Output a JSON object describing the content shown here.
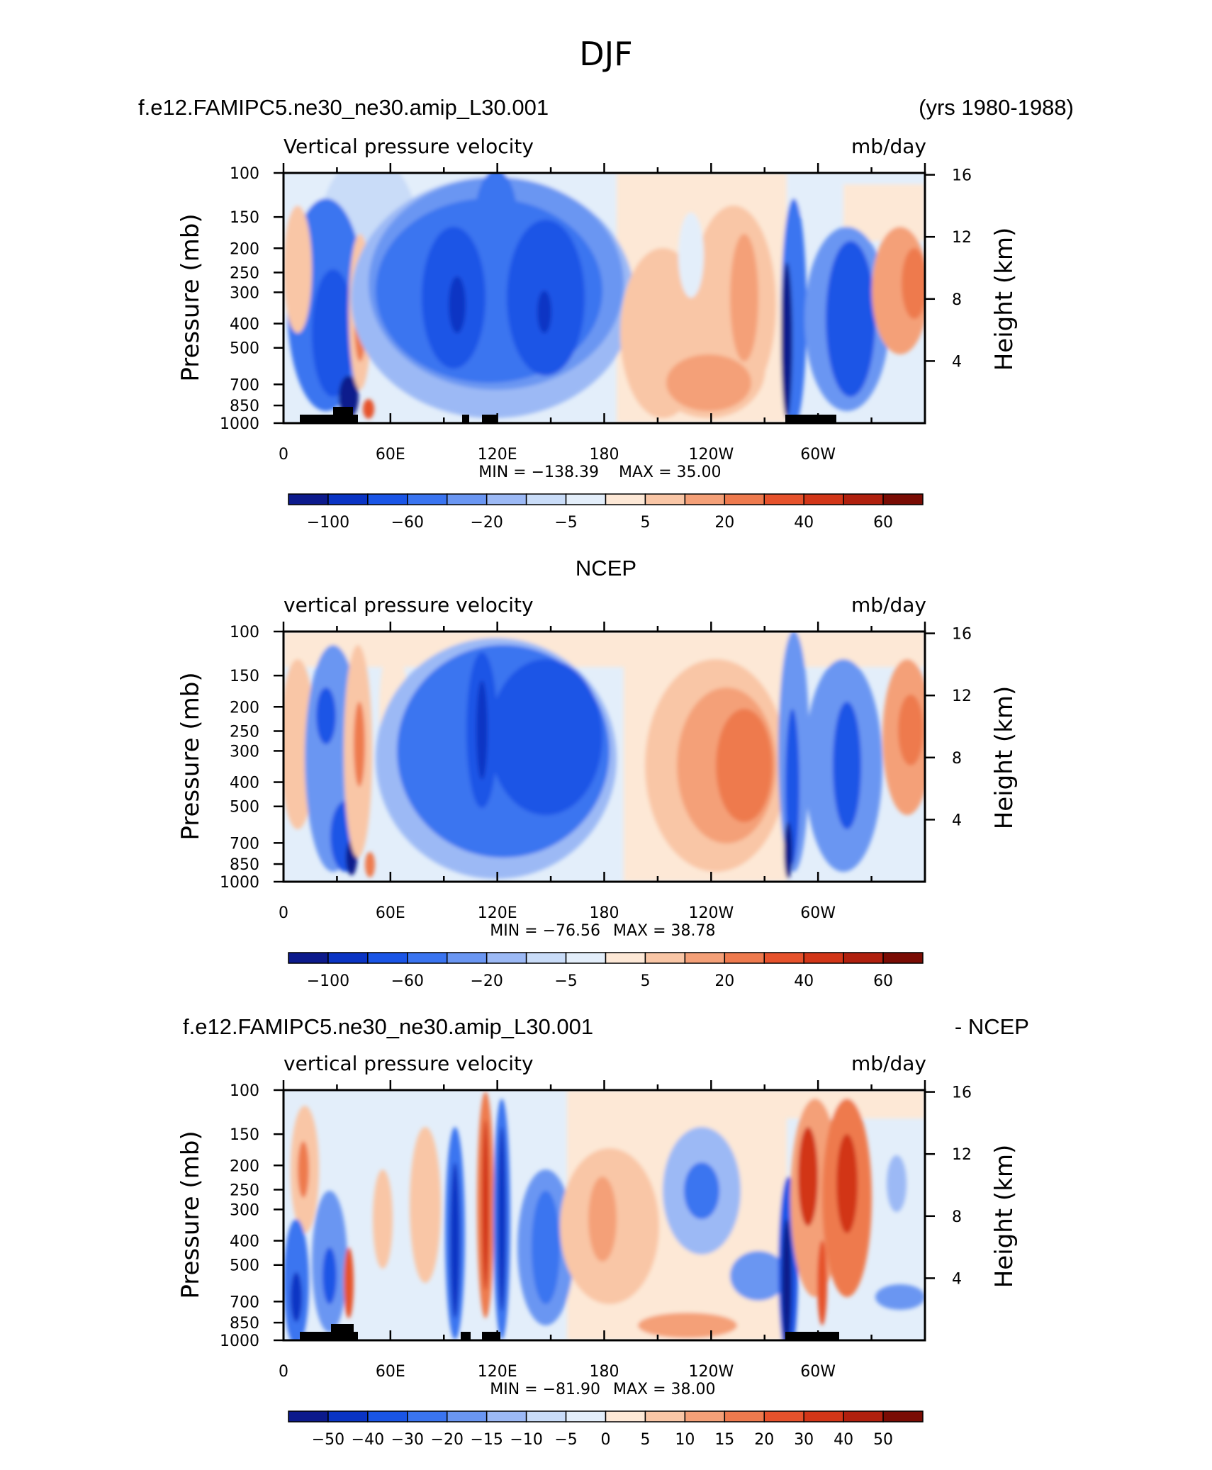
{
  "page": {
    "title": "DJF",
    "model_name": "f.e12.FAMIPC5.ne30_ne30.amip_L30.001",
    "years": "(yrs 1980-1988)",
    "obs_title": "NCEP",
    "diff_model": "f.e12.FAMIPC5.ne30_ne30.amip_L30.001",
    "diff_suffix": "- NCEP"
  },
  "chart_data": [
    {
      "type": "heatmap",
      "panel": "model",
      "title": "Vertical pressure velocity",
      "units": "mb/day",
      "ylabel": "Pressure (mb)",
      "y2label": "Height (km)",
      "x_ticks": [
        "0",
        "60E",
        "120E",
        "180",
        "120W",
        "60W"
      ],
      "x_lon": [
        0,
        60,
        120,
        180,
        240,
        300
      ],
      "xlim": [
        0,
        360
      ],
      "y_ticks": [
        100,
        150,
        200,
        250,
        300,
        400,
        500,
        700,
        850,
        1000
      ],
      "ylim": [
        1000,
        100
      ],
      "y_scale": "log",
      "height_ticks": [
        4,
        8,
        12,
        16
      ],
      "min_text": "MIN = −138.39",
      "max_text": "MAX =   35.00",
      "colorbar_labels": [
        "−100",
        "−60",
        "−20",
        "−5",
        "5",
        "20",
        "40",
        "60"
      ],
      "colorbar_colors": [
        "#0c1a8c",
        "#0a34c4",
        "#1a55e6",
        "#3a74f0",
        "#6a96f2",
        "#9cb9f5",
        "#c9dcf8",
        "#e3eefa",
        "#fde8d6",
        "#f9c6a6",
        "#f4a078",
        "#ee7a4e",
        "#e6522c",
        "#d23618",
        "#b0200e",
        "#7a0c04"
      ]
    },
    {
      "type": "heatmap",
      "panel": "obs",
      "title": "vertical pressure velocity",
      "units": "mb/day",
      "ylabel": "Pressure (mb)",
      "y2label": "Height (km)",
      "x_ticks": [
        "0",
        "60E",
        "120E",
        "180",
        "120W",
        "60W"
      ],
      "x_lon": [
        0,
        60,
        120,
        180,
        240,
        300
      ],
      "xlim": [
        0,
        360
      ],
      "y_ticks": [
        100,
        150,
        200,
        250,
        300,
        400,
        500,
        700,
        850,
        1000
      ],
      "ylim": [
        1000,
        100
      ],
      "y_scale": "log",
      "height_ticks": [
        4,
        8,
        12,
        16
      ],
      "min_text": "MIN = −76.56",
      "max_text": "MAX =   38.78",
      "colorbar_labels": [
        "−100",
        "−60",
        "−20",
        "−5",
        "5",
        "20",
        "40",
        "60"
      ],
      "colorbar_colors": [
        "#0c1a8c",
        "#0a34c4",
        "#1a55e6",
        "#3a74f0",
        "#6a96f2",
        "#9cb9f5",
        "#c9dcf8",
        "#e3eefa",
        "#fde8d6",
        "#f9c6a6",
        "#f4a078",
        "#ee7a4e",
        "#e6522c",
        "#d23618",
        "#b0200e",
        "#7a0c04"
      ]
    },
    {
      "type": "heatmap",
      "panel": "diff",
      "title": "vertical pressure velocity",
      "units": "mb/day",
      "ylabel": "Pressure (mb)",
      "y2label": "Height (km)",
      "x_ticks": [
        "0",
        "60E",
        "120E",
        "180",
        "120W",
        "60W"
      ],
      "x_lon": [
        0,
        60,
        120,
        180,
        240,
        300
      ],
      "xlim": [
        0,
        360
      ],
      "y_ticks": [
        100,
        150,
        200,
        250,
        300,
        400,
        500,
        700,
        850,
        1000
      ],
      "ylim": [
        1000,
        100
      ],
      "y_scale": "log",
      "height_ticks": [
        4,
        8,
        12,
        16
      ],
      "min_text": "MIN = −81.90",
      "max_text": "MAX =   38.00",
      "colorbar_labels": [
        "−50",
        "−40",
        "−30",
        "−20",
        "−15",
        "−10",
        "−5",
        "0",
        "5",
        "10",
        "15",
        "20",
        "30",
        "40",
        "50"
      ],
      "colorbar_colors": [
        "#0c1a8c",
        "#0a34c4",
        "#1a55e6",
        "#3a74f0",
        "#6a96f2",
        "#9cb9f5",
        "#c9dcf8",
        "#e3eefa",
        "#fde8d6",
        "#f9c6a6",
        "#f4a078",
        "#ee7a4e",
        "#e6522c",
        "#d23618",
        "#b0200e",
        "#7a0c04"
      ]
    }
  ]
}
